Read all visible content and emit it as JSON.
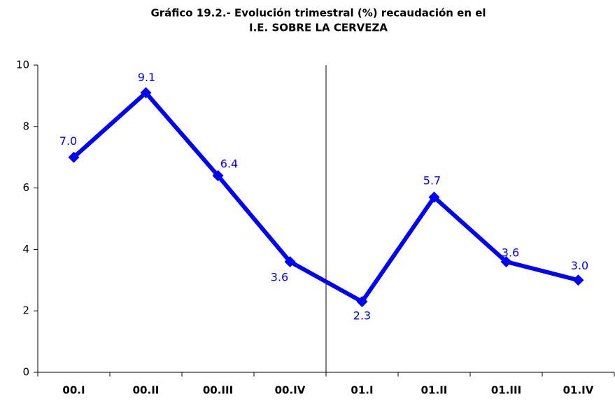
{
  "chart_data": {
    "type": "line",
    "title_lines": [
      "Gráfico 19.2.- Evolución trimestral (%) recaudación en el",
      "I.E. SOBRE LA CERVEZA"
    ],
    "categories": [
      "00.I",
      "00.II",
      "00.III",
      "00.IV",
      "01.I",
      "01.II",
      "01.III",
      "01.IV"
    ],
    "values": [
      7.0,
      9.1,
      6.4,
      3.6,
      2.3,
      5.7,
      3.6,
      3.0
    ],
    "value_labels": [
      "7.0",
      "9.1",
      "6.4",
      "3.6",
      "2.3",
      "5.7",
      "3.6",
      "3.0"
    ],
    "color": "#0000ff",
    "ylim": [
      0,
      10
    ],
    "yticks": [
      0,
      2,
      4,
      6,
      8,
      10
    ]
  }
}
